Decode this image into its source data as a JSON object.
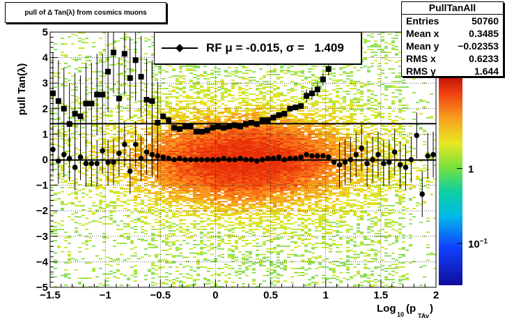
{
  "title": "pull of Δ Tan(λ) from cosmics muons",
  "stats": {
    "name": "PullTanAll",
    "rows": [
      {
        "label": "Entries",
        "value": "50760"
      },
      {
        "label": "Mean x",
        "value": "0.3485"
      },
      {
        "label": "Mean y",
        "value": "−0.02353"
      },
      {
        "label": "RMS x",
        "value": "0.6233"
      },
      {
        "label": "RMS y",
        "value": "1.644"
      }
    ]
  },
  "legend": {
    "text": "RF μ = -0.015, σ =   1.409"
  },
  "chart_data": {
    "type": "scatter",
    "xlabel": "Log",
    "xlabel_sub": "10",
    "xlabel_paren": "(p",
    "xlabel_sub2": "TAv",
    "xlabel_close": ")",
    "ylabel": "pull Tan(λ)",
    "xlim": [
      -1.5,
      2
    ],
    "ylim": [
      -5,
      5
    ],
    "xticks": [
      "−1.5",
      "−1",
      "−0.5",
      "0",
      "0.5",
      "1",
      "1.5",
      "2"
    ],
    "xtick_values": [
      -1.5,
      -1,
      -0.5,
      0,
      0.5,
      1,
      1.5,
      2
    ],
    "yticks": [
      "−5",
      "−4",
      "−3",
      "−2",
      "−1",
      "0",
      "1",
      "2",
      "3",
      "4",
      "5"
    ],
    "ytick_values": [
      -5,
      -4,
      -3,
      -2,
      -1,
      0,
      1,
      2,
      3,
      4,
      5
    ],
    "colorbar_labels": [
      {
        "label": "1",
        "level": 0.56
      },
      {
        "label": "10",
        "sup": "−1",
        "level": 0.2
      }
    ],
    "grid": true,
    "series": [
      {
        "marker": "square",
        "x": [
          -1.475,
          -1.425,
          -1.375,
          -1.325,
          -1.275,
          -1.225,
          -1.175,
          -1.125,
          -1.075,
          -1.025,
          -0.975,
          -0.925,
          -0.875,
          -0.825,
          -0.775,
          -0.725,
          -0.675,
          -0.625,
          -0.575,
          -0.525,
          -0.475,
          -0.425,
          -0.375,
          -0.325,
          -0.275,
          -0.225,
          -0.175,
          -0.125,
          -0.075,
          -0.025,
          0.025,
          0.075,
          0.125,
          0.175,
          0.225,
          0.275,
          0.325,
          0.375,
          0.425,
          0.475,
          0.525,
          0.575,
          0.625,
          0.675,
          0.725,
          0.775,
          0.825,
          0.875,
          0.925,
          0.975,
          1.025
        ],
        "y": [
          2.6,
          2.3,
          2.0,
          1.4,
          1.8,
          1.7,
          2.2,
          2.2,
          2.55,
          2.55,
          3.45,
          4.2,
          2.4,
          4.15,
          3.2,
          3.9,
          3.25,
          2.35,
          2.3,
          1.45,
          1.7,
          1.55,
          1.25,
          1.2,
          1.3,
          1.3,
          1.1,
          1.1,
          1.15,
          1.25,
          1.3,
          1.25,
          1.3,
          1.35,
          1.3,
          1.4,
          1.45,
          1.4,
          1.55,
          1.55,
          1.65,
          1.75,
          1.8,
          2.0,
          2.05,
          2.1,
          2.5,
          2.6,
          2.75,
          3.15,
          3.55
        ]
      },
      {
        "marker": "circle",
        "x": [
          -1.475,
          -1.425,
          -1.375,
          -1.325,
          -1.275,
          -1.225,
          -1.175,
          -1.125,
          -1.075,
          -1.025,
          -0.975,
          -0.925,
          -0.875,
          -0.825,
          -0.775,
          -0.725,
          -0.675,
          -0.625,
          -0.575,
          -0.525,
          -0.475,
          -0.425,
          -0.375,
          -0.325,
          -0.275,
          -0.225,
          -0.175,
          -0.125,
          -0.075,
          -0.025,
          0.025,
          0.075,
          0.125,
          0.175,
          0.225,
          0.275,
          0.325,
          0.375,
          0.425,
          0.475,
          0.525,
          0.575,
          0.625,
          0.675,
          0.725,
          0.775,
          0.825,
          0.875,
          0.925,
          0.975,
          1.025,
          1.075,
          1.125,
          1.175,
          1.225,
          1.275,
          1.325,
          1.375,
          1.425,
          1.475,
          1.525,
          1.575,
          1.625,
          1.675,
          1.725,
          1.775,
          1.825,
          1.875,
          1.925,
          1.975
        ],
        "y": [
          0.4,
          -0.05,
          0.2,
          0.05,
          -0.3,
          0.1,
          -0.15,
          -0.15,
          -0.15,
          0.35,
          -0.1,
          -0.1,
          0.25,
          0.6,
          -0.45,
          0.6,
          0.05,
          0.3,
          0.2,
          0.15,
          0.1,
          0.05,
          0.0,
          0.05,
          0.0,
          0.0,
          0.0,
          0.0,
          0.0,
          0.0,
          0.0,
          0.05,
          0.0,
          0.0,
          0.05,
          0.0,
          0.0,
          -0.05,
          0.0,
          0.05,
          0.05,
          0.1,
          0.0,
          0.05,
          0.05,
          0.1,
          0.2,
          0.15,
          0.15,
          0.15,
          0.1,
          -0.1,
          -0.2,
          -0.1,
          0.0,
          0.2,
          0.45,
          -0.15,
          0.0,
          0.2,
          -0.15,
          -0.1,
          0.3,
          -0.2,
          -0.3,
          0.0,
          0.95,
          -1.35,
          0.15,
          0.2
        ]
      }
    ],
    "fits": [
      {
        "slope": 0,
        "intercept": 1.409
      },
      {
        "slope": 0,
        "intercept": -0.015
      }
    ]
  }
}
